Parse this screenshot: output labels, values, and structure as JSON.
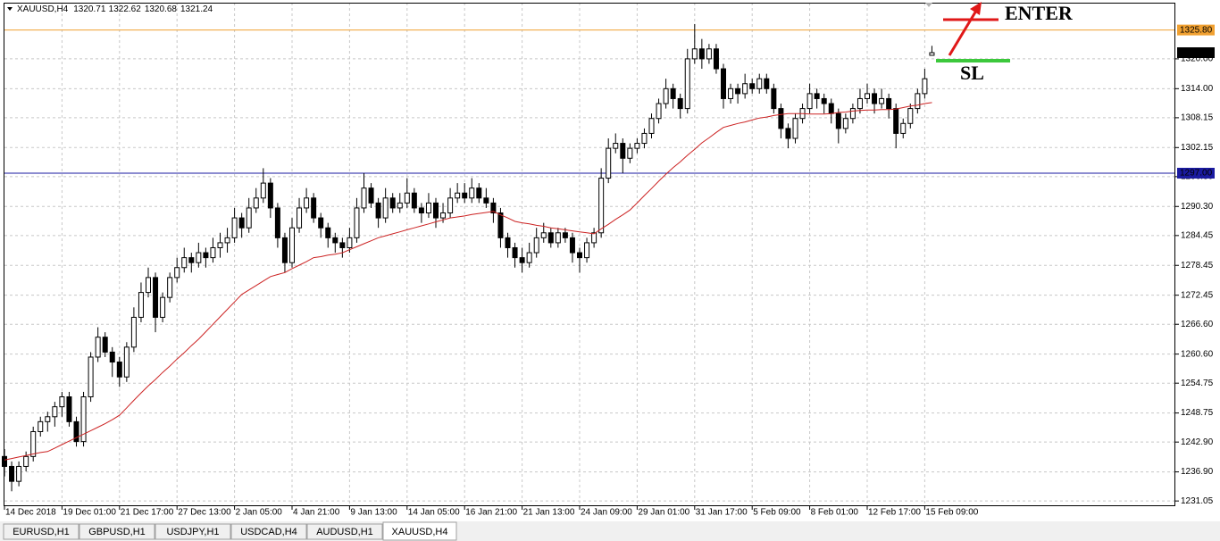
{
  "chart_data": {
    "type": "candlestick",
    "symbol": "XAUUSD,H4",
    "candles": [
      [
        1240,
        1241.5,
        1236,
        1238
      ],
      [
        1238,
        1239,
        1233,
        1235
      ],
      [
        1235,
        1239,
        1234,
        1238
      ],
      [
        1238,
        1241,
        1237,
        1240
      ],
      [
        1240,
        1246,
        1239,
        1245
      ],
      [
        1245,
        1248,
        1244,
        1247
      ],
      [
        1247,
        1249,
        1245,
        1248
      ],
      [
        1248,
        1251,
        1246,
        1250
      ],
      [
        1250,
        1253,
        1248,
        1252
      ],
      [
        1252,
        1253,
        1246,
        1247
      ],
      [
        1247,
        1248,
        1242,
        1243
      ],
      [
        1243,
        1253,
        1242,
        1252
      ],
      [
        1252,
        1261,
        1251,
        1260
      ],
      [
        1260,
        1266,
        1259,
        1264
      ],
      [
        1264,
        1265,
        1260,
        1261
      ],
      [
        1261,
        1262,
        1256,
        1259
      ],
      [
        1259,
        1260,
        1254,
        1256
      ],
      [
        1256,
        1263,
        1255,
        1262
      ],
      [
        1262,
        1270,
        1261,
        1268
      ],
      [
        1268,
        1275,
        1267,
        1273
      ],
      [
        1273,
        1278,
        1272,
        1276
      ],
      [
        1276,
        1277,
        1265,
        1268
      ],
      [
        1268,
        1273,
        1267,
        1272
      ],
      [
        1272,
        1277,
        1271,
        1276
      ],
      [
        1276,
        1280,
        1275,
        1278
      ],
      [
        1278,
        1282,
        1277,
        1280
      ],
      [
        1280,
        1281,
        1277,
        1279
      ],
      [
        1279,
        1283,
        1278,
        1281
      ],
      [
        1281,
        1282,
        1278,
        1280
      ],
      [
        1280,
        1284,
        1279,
        1282
      ],
      [
        1282,
        1285,
        1280,
        1283
      ],
      [
        1283,
        1286,
        1281,
        1284
      ],
      [
        1284,
        1290,
        1283,
        1288
      ],
      [
        1288,
        1289,
        1284,
        1286
      ],
      [
        1286,
        1292,
        1285,
        1290
      ],
      [
        1290,
        1294,
        1289,
        1292
      ],
      [
        1292,
        1298,
        1291,
        1295
      ],
      [
        1295,
        1296,
        1288,
        1290
      ],
      [
        1290,
        1291,
        1282,
        1284
      ],
      [
        1284,
        1285,
        1277,
        1279
      ],
      [
        1279,
        1288,
        1278,
        1286
      ],
      [
        1286,
        1292,
        1285,
        1290
      ],
      [
        1290,
        1294,
        1289,
        1292
      ],
      [
        1292,
        1293,
        1287,
        1288
      ],
      [
        1288,
        1289,
        1284,
        1286
      ],
      [
        1286,
        1287,
        1282,
        1284
      ],
      [
        1284,
        1285,
        1281,
        1283
      ],
      [
        1283,
        1284,
        1280,
        1282
      ],
      [
        1282,
        1286,
        1281,
        1284
      ],
      [
        1284,
        1292,
        1283,
        1290
      ],
      [
        1290,
        1297,
        1289,
        1294
      ],
      [
        1294,
        1295,
        1290,
        1291
      ],
      [
        1291,
        1292,
        1286,
        1288
      ],
      [
        1288,
        1294,
        1287,
        1292
      ],
      [
        1292,
        1293,
        1289,
        1290
      ],
      [
        1290,
        1293,
        1289,
        1291
      ],
      [
        1291,
        1296,
        1290,
        1293
      ],
      [
        1293,
        1294,
        1289,
        1290
      ],
      [
        1290,
        1291,
        1287,
        1289
      ],
      [
        1289,
        1293,
        1288,
        1291
      ],
      [
        1291,
        1292,
        1286,
        1288
      ],
      [
        1288,
        1291,
        1287,
        1289
      ],
      [
        1289,
        1294,
        1288,
        1292
      ],
      [
        1292,
        1295,
        1291,
        1293
      ],
      [
        1293,
        1295,
        1291,
        1292
      ],
      [
        1292,
        1296,
        1291,
        1294
      ],
      [
        1294,
        1295,
        1291,
        1292
      ],
      [
        1292,
        1294,
        1290,
        1291
      ],
      [
        1291,
        1292,
        1287,
        1289
      ],
      [
        1289,
        1290,
        1282,
        1284
      ],
      [
        1284,
        1285,
        1280,
        1282
      ],
      [
        1282,
        1283,
        1278,
        1280
      ],
      [
        1280,
        1282,
        1277,
        1279
      ],
      [
        1279,
        1283,
        1278,
        1281
      ],
      [
        1281,
        1286,
        1280,
        1284
      ],
      [
        1284,
        1287,
        1283,
        1285
      ],
      [
        1285,
        1286,
        1282,
        1283
      ],
      [
        1283,
        1286,
        1282,
        1285
      ],
      [
        1285,
        1286,
        1283,
        1284
      ],
      [
        1284,
        1285,
        1279,
        1281
      ],
      [
        1281,
        1282,
        1277,
        1280
      ],
      [
        1280,
        1284,
        1279,
        1283
      ],
      [
        1283,
        1286,
        1282,
        1285
      ],
      [
        1285,
        1298,
        1284,
        1296
      ],
      [
        1296,
        1304,
        1295,
        1302
      ],
      [
        1302,
        1305,
        1301,
        1303
      ],
      [
        1303,
        1304,
        1297,
        1300
      ],
      [
        1300,
        1303,
        1299,
        1302
      ],
      [
        1302,
        1304,
        1301,
        1303
      ],
      [
        1303,
        1306,
        1302,
        1305
      ],
      [
        1305,
        1309,
        1304,
        1308
      ],
      [
        1308,
        1312,
        1307,
        1311
      ],
      [
        1311,
        1316,
        1310,
        1314
      ],
      [
        1314,
        1315,
        1310,
        1312
      ],
      [
        1312,
        1313,
        1308,
        1310
      ],
      [
        1310,
        1322,
        1309,
        1320
      ],
      [
        1320,
        1327,
        1319,
        1322
      ],
      [
        1322,
        1324,
        1318,
        1320
      ],
      [
        1320,
        1323,
        1319,
        1322
      ],
      [
        1322,
        1323,
        1317,
        1318
      ],
      [
        1318,
        1319,
        1310,
        1312
      ],
      [
        1312,
        1315,
        1311,
        1314
      ],
      [
        1314,
        1315,
        1311,
        1313
      ],
      [
        1313,
        1317,
        1312,
        1315
      ],
      [
        1315,
        1316,
        1313,
        1314
      ],
      [
        1314,
        1317,
        1313,
        1316
      ],
      [
        1316,
        1317,
        1313,
        1314
      ],
      [
        1314,
        1315,
        1309,
        1310
      ],
      [
        1310,
        1311,
        1304,
        1306
      ],
      [
        1306,
        1307,
        1302,
        1304
      ],
      [
        1304,
        1309,
        1303,
        1308
      ],
      [
        1308,
        1311,
        1307,
        1310
      ],
      [
        1310,
        1315,
        1309,
        1313
      ],
      [
        1313,
        1314,
        1310,
        1312
      ],
      [
        1312,
        1313,
        1309,
        1311
      ],
      [
        1311,
        1312,
        1307,
        1309
      ],
      [
        1309,
        1310,
        1303,
        1306
      ],
      [
        1306,
        1309,
        1305,
        1308
      ],
      [
        1308,
        1311,
        1307,
        1310
      ],
      [
        1310,
        1314,
        1309,
        1312
      ],
      [
        1312,
        1315,
        1311,
        1313
      ],
      [
        1313,
        1314,
        1309,
        1311
      ],
      [
        1311,
        1314,
        1310,
        1312
      ],
      [
        1312,
        1313,
        1308,
        1310
      ],
      [
        1310,
        1311,
        1302,
        1305
      ],
      [
        1305,
        1308,
        1304,
        1307
      ],
      [
        1307,
        1311,
        1306,
        1310
      ],
      [
        1310,
        1314,
        1309,
        1313
      ],
      [
        1313,
        1318,
        1312,
        1316
      ],
      [
        1320.71,
        1322.62,
        1320.68,
        1321.24
      ]
    ],
    "moving_average": {
      "color": "#cc2222",
      "values": [
        1239.3,
        1239.6,
        1239.9,
        1240.2,
        1240.5,
        1240.8,
        1241.0,
        1241.7,
        1242.4,
        1243.1,
        1243.8,
        1244.5,
        1245.2,
        1245.9,
        1246.6,
        1247.4,
        1248.3,
        1249.8,
        1251.3,
        1252.8,
        1254.2,
        1255.5,
        1256.9,
        1258.2,
        1259.6,
        1260.9,
        1262.3,
        1263.6,
        1265.1,
        1266.6,
        1268.1,
        1269.6,
        1271.1,
        1272.6,
        1273.5,
        1274.4,
        1275.3,
        1276.2,
        1276.6,
        1277.0,
        1277.8,
        1278.5,
        1279.2,
        1280.0,
        1280.2,
        1280.5,
        1280.7,
        1281.0,
        1281.6,
        1282.2,
        1282.8,
        1283.4,
        1284.0,
        1284.4,
        1284.8,
        1285.2,
        1285.6,
        1286.0,
        1286.4,
        1286.8,
        1287.2,
        1287.6,
        1288.0,
        1288.2,
        1288.4,
        1288.7,
        1288.9,
        1289.1,
        1289.3,
        1288.6,
        1288.0,
        1287.3,
        1287.0,
        1286.8,
        1286.5,
        1286.3,
        1286.0,
        1285.8,
        1285.6,
        1285.4,
        1285.2,
        1285.0,
        1284.8,
        1285.8,
        1286.7,
        1287.7,
        1288.6,
        1289.6,
        1291.0,
        1292.5,
        1293.9,
        1295.4,
        1296.8,
        1298.1,
        1299.3,
        1300.6,
        1301.8,
        1303.1,
        1304.1,
        1305.2,
        1306.2,
        1306.6,
        1307.0,
        1307.3,
        1307.7,
        1308.1,
        1308.3,
        1308.6,
        1308.8,
        1309.0,
        1309.0,
        1309.0,
        1308.9,
        1308.9,
        1308.9,
        1309.0,
        1309.2,
        1309.3,
        1309.5,
        1309.6,
        1309.7,
        1309.7,
        1309.8,
        1309.8,
        1309.9,
        1310.2,
        1310.5,
        1310.7,
        1311.0,
        1311.2
      ]
    },
    "ylim": [
      1230.0,
      1331.3
    ],
    "yticks": [
      {
        "value": 1231.05,
        "label": "1231.05"
      },
      {
        "value": 1236.9,
        "label": "1236.90"
      },
      {
        "value": 1242.9,
        "label": "1242.90"
      },
      {
        "value": 1248.75,
        "label": "1248.75"
      },
      {
        "value": 1254.75,
        "label": "1254.75"
      },
      {
        "value": 1260.6,
        "label": "1260.60"
      },
      {
        "value": 1266.6,
        "label": "1266.60"
      },
      {
        "value": 1272.45,
        "label": "1272.45"
      },
      {
        "value": 1278.45,
        "label": "1278.45"
      },
      {
        "value": 1284.45,
        "label": "1284.45"
      },
      {
        "value": 1290.3,
        "label": "1290.30"
      },
      {
        "value": 1296.3,
        "label": "1296.30"
      },
      {
        "value": 1302.15,
        "label": "1302.15"
      },
      {
        "value": 1308.15,
        "label": "1308.15"
      },
      {
        "value": 1314.0,
        "label": "1314.00"
      },
      {
        "value": 1320.0,
        "label": "1320.00"
      }
    ],
    "xticks": [
      {
        "value": 0,
        "label": "14 Dec 2018"
      },
      {
        "value": 8,
        "label": "19 Dec 01:00"
      },
      {
        "value": 16,
        "label": "21 Dec 17:00"
      },
      {
        "value": 24,
        "label": "27 Dec 13:00"
      },
      {
        "value": 32,
        "label": "2 Jan 05:00"
      },
      {
        "value": 40,
        "label": "4 Jan 21:00"
      },
      {
        "value": 48,
        "label": "9 Jan 13:00"
      },
      {
        "value": 56,
        "label": "14 Jan 05:00"
      },
      {
        "value": 64,
        "label": "16 Jan 21:00"
      },
      {
        "value": 72,
        "label": "21 Jan 13:00"
      },
      {
        "value": 80,
        "label": "24 Jan 09:00"
      },
      {
        "value": 88,
        "label": "29 Jan 01:00"
      },
      {
        "value": 96,
        "label": "31 Jan 17:00"
      },
      {
        "value": 104,
        "label": "5 Feb 09:00"
      },
      {
        "value": 112,
        "label": "8 Feb 01:00"
      },
      {
        "value": 120,
        "label": "12 Feb 17:00"
      },
      {
        "value": 128,
        "label": "15 Feb 09:00"
      }
    ],
    "grid": true,
    "hlines": [
      {
        "value": 1325.8,
        "label": "1325.80",
        "color": "#f0a030"
      },
      {
        "value": 1297.0,
        "label": "1297.00",
        "color": "#1a1aa0"
      }
    ],
    "annotations": [
      {
        "text": "ENTER",
        "color": "#e01818"
      },
      {
        "text": "SL",
        "color": "#3cc83c"
      }
    ]
  },
  "tabs": {
    "items": [
      "EURUSD,H1",
      "GBPUSD,H1",
      "USDJPY,H1",
      "USDCAD,H4",
      "AUDUSD,H1",
      "XAUUSD,H4"
    ],
    "active": 5
  }
}
